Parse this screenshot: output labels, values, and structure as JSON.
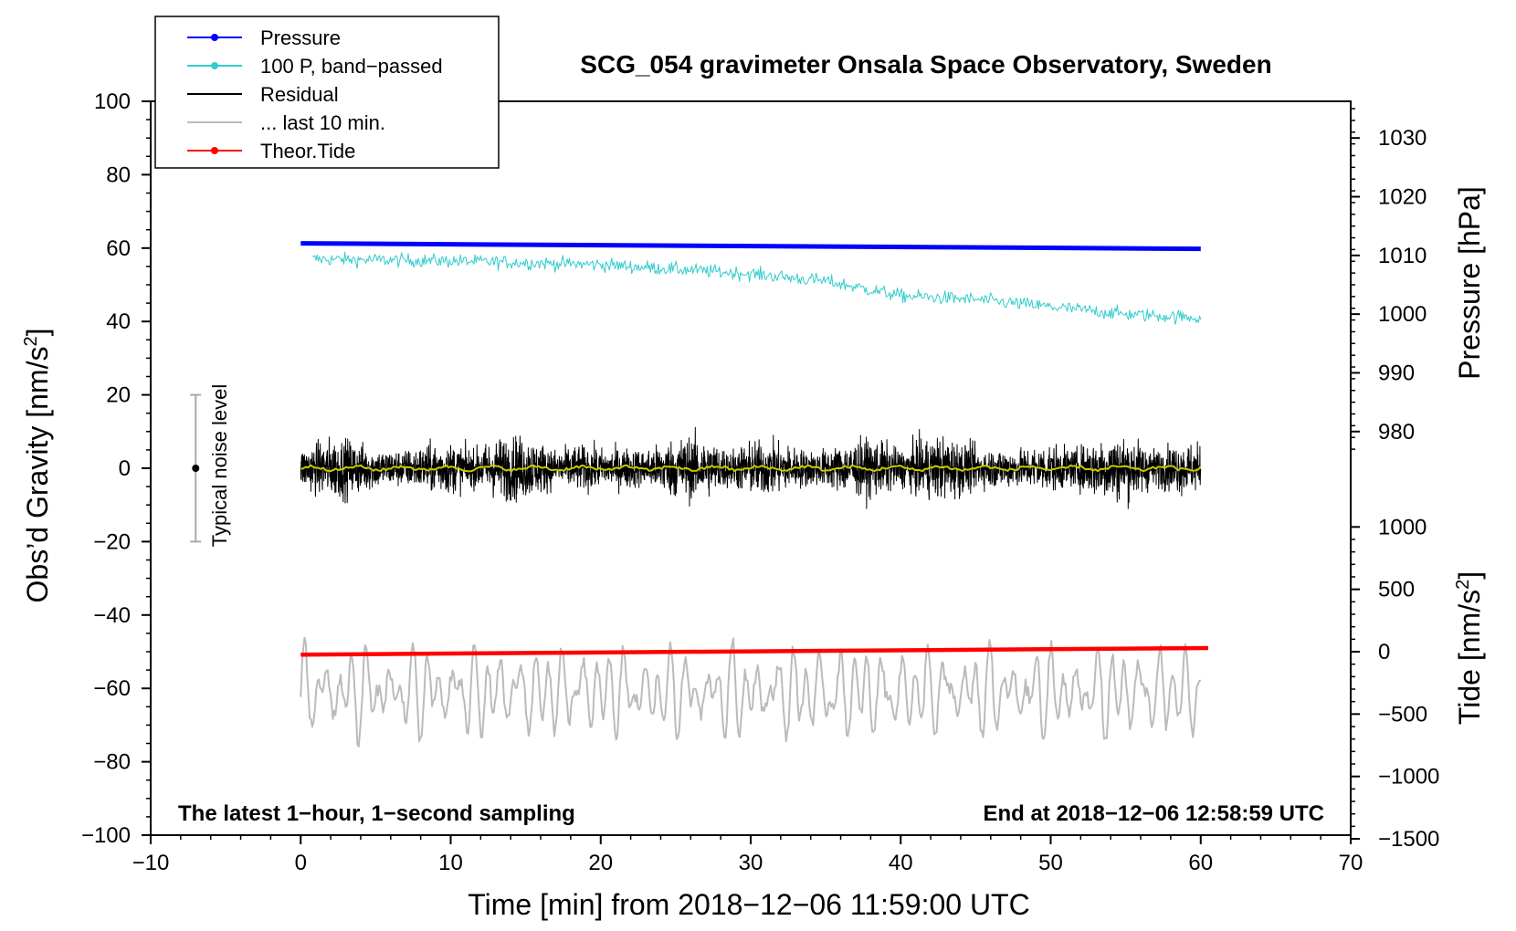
{
  "chart_data": {
    "type": "line",
    "title": "SCG_054 gravimeter Onsala Space Observatory, Sweden",
    "xlabel": "Time [min] from 2018−12−06 11:59:00 UTC",
    "ylabel": "Obs’d Gravity [nm/s",
    "ylabel_sup": "2",
    "ylabel_end": "]",
    "right_label_pressure": "Pressure [hPa]",
    "right_label_tide": "Tide [nm/s",
    "right_label_tide_sup": "2",
    "right_label_tide_end": "]",
    "bottom_left_note": "The latest 1−hour, 1−second sampling",
    "bottom_right_note": "End at 2018−12−06 12:58:59 UTC",
    "noise_label": "Typical noise level",
    "xlim": [
      -10,
      70
    ],
    "ylim": [
      -100,
      100
    ],
    "x_ticks": [
      "−10",
      "0",
      "10",
      "20",
      "30",
      "40",
      "50",
      "60",
      "70"
    ],
    "x_tick_values": [
      -10,
      0,
      10,
      20,
      30,
      40,
      50,
      60,
      70
    ],
    "y_ticks": [
      "100",
      "80",
      "60",
      "40",
      "20",
      "0",
      "−20",
      "−40",
      "−60",
      "−80",
      "−100"
    ],
    "y_tick_values": [
      100,
      80,
      60,
      40,
      20,
      0,
      -20,
      -40,
      -60,
      -80,
      -100
    ],
    "pressure_axis": {
      "ticks": [
        "1030",
        "1020",
        "1010",
        "1000",
        "990",
        "980"
      ],
      "tick_values": [
        1030,
        1020,
        1010,
        1000,
        990,
        980
      ]
    },
    "tide_axis": {
      "ticks": [
        "1000",
        "500",
        "0",
        "−500",
        "−1000",
        "−1500"
      ],
      "tick_values": [
        1000,
        500,
        0,
        -500,
        -1000,
        -1500
      ]
    },
    "legend": [
      {
        "label": "Pressure",
        "color": "#0000ff",
        "marker": true
      },
      {
        "label": "100 P, band−passed",
        "color": "#33cccc",
        "marker": true
      },
      {
        "label": "Residual",
        "color": "#000000",
        "marker": false
      },
      {
        "label": "... last 10 min.",
        "color": "#bbbbbb",
        "marker": false
      },
      {
        "label": "Theor.Tide",
        "color": "#ff0000",
        "marker": true
      }
    ],
    "series": [
      {
        "name": "Pressure",
        "color": "#0000ff",
        "x": [
          0,
          60
        ],
        "y": [
          61.3,
          59.8
        ]
      },
      {
        "name": "100 P, band−passed",
        "color": "#33cccc",
        "x": [
          0.8,
          10,
          20,
          30,
          35,
          40,
          45,
          50,
          55,
          60
        ],
        "y": [
          57,
          56.5,
          55.5,
          53,
          51,
          47,
          46,
          44,
          42,
          41
        ],
        "noise_amplitude": 4
      },
      {
        "name": "Residual",
        "color": "#000000",
        "x": [
          0,
          60
        ],
        "y": [
          0,
          0
        ],
        "noise_amplitude": 20
      },
      {
        "name": "Residual smoothed",
        "color": "#c8c800",
        "x": [
          0,
          60
        ],
        "y": [
          0,
          0
        ]
      },
      {
        "name": "... last 10 min.",
        "color": "#bbbbbb",
        "x": [
          0,
          60
        ],
        "y": [
          -61,
          -61
        ],
        "noise_amplitude": 20
      },
      {
        "name": "Theor.Tide",
        "color": "#ff0000",
        "x": [
          0,
          60.5
        ],
        "y": [
          -50.8,
          -49
        ]
      }
    ],
    "noise_bar": {
      "x": -7,
      "y_center": 0,
      "y_min": -20,
      "y_max": 20
    }
  }
}
